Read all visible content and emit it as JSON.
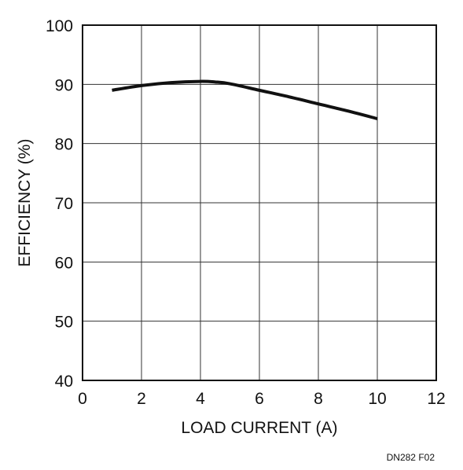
{
  "chart_data": {
    "type": "line",
    "title": "",
    "xlabel": "LOAD CURRENT (A)",
    "ylabel": "EFFICIENCY (%)",
    "xlim": [
      0,
      12
    ],
    "ylim": [
      40,
      100
    ],
    "x_ticks": [
      0,
      2,
      4,
      6,
      8,
      10,
      12
    ],
    "y_ticks": [
      40,
      50,
      60,
      70,
      80,
      90,
      100
    ],
    "grid": true,
    "series": [
      {
        "x": [
          1,
          2,
          3,
          4,
          4.5,
          5,
          6,
          7,
          8,
          9,
          10
        ],
        "y": [
          89.0,
          89.8,
          90.3,
          90.5,
          90.4,
          90.1,
          89.0,
          87.9,
          86.7,
          85.5,
          84.2
        ]
      }
    ],
    "annotations": [
      "DN282 F02"
    ],
    "line_color": "#111111"
  }
}
